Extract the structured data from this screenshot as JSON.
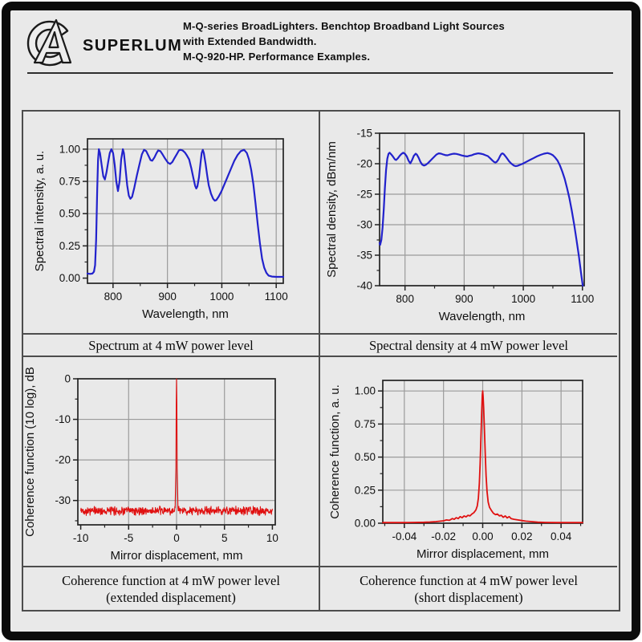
{
  "header": {
    "logo_text": "SUPERLUM",
    "title_lines": [
      "M-Q-series BroadLighters. Benchtop Broadband Light Sources",
      "with Extended Bandwidth.",
      "M-Q-920-HP. Performance Examples."
    ]
  },
  "colors": {
    "background": "#e9e9e9",
    "frame_border": "#0b0b0b",
    "table_border": "#4d4d4d",
    "grid_line": "#9b9b9b",
    "axis": "#222222",
    "blue_curve": "#2222cc",
    "red_curve": "#e01010"
  },
  "panels": [
    {
      "caption_lines": [
        "Spectrum at 4 mW power level"
      ]
    },
    {
      "caption_lines": [
        "Spectral density at 4 mW power level"
      ]
    },
    {
      "caption_lines": [
        "Coherence function at 4 mW power level",
        "(extended displacement)"
      ]
    },
    {
      "caption_lines": [
        "Coherence function at 4 mW power level",
        "(short displacement)"
      ]
    }
  ],
  "chart_data": [
    {
      "type": "line",
      "xlabel": "Wavelength, nm",
      "ylabel": "Spectral intensity, a. u.",
      "color": "#2222cc",
      "stroke_width": 2.2,
      "xlim": [
        753,
        1113
      ],
      "ylim": [
        -0.04,
        1.08
      ],
      "x_ticks": [
        {
          "v": 800,
          "l": "800"
        },
        {
          "v": 900,
          "l": "900"
        },
        {
          "v": 1000,
          "l": "1000"
        },
        {
          "v": 1100,
          "l": "1100"
        }
      ],
      "y_ticks": [
        {
          "v": 0,
          "l": "0.00"
        },
        {
          "v": 0.25,
          "l": "0.25"
        },
        {
          "v": 0.5,
          "l": "0.50"
        },
        {
          "v": 0.75,
          "l": "0.75"
        },
        {
          "v": 1.0,
          "l": "1.00"
        }
      ],
      "x_minor_step": 50,
      "y_minor_step": 0.125,
      "points": [
        [
          753,
          0.035
        ],
        [
          758,
          0.033
        ],
        [
          762,
          0.035
        ],
        [
          765,
          0.05
        ],
        [
          767,
          0.1
        ],
        [
          769,
          0.3
        ],
        [
          771,
          0.7
        ],
        [
          772.5,
          0.92
        ],
        [
          774,
          1.0
        ],
        [
          776,
          0.97
        ],
        [
          779,
          0.88
        ],
        [
          782,
          0.79
        ],
        [
          785,
          0.765
        ],
        [
          788,
          0.82
        ],
        [
          791,
          0.9
        ],
        [
          794,
          0.97
        ],
        [
          797,
          1.0
        ],
        [
          800,
          0.97
        ],
        [
          803,
          0.88
        ],
        [
          806,
          0.75
        ],
        [
          809,
          0.675
        ],
        [
          812,
          0.75
        ],
        [
          815,
          0.92
        ],
        [
          818,
          1.0
        ],
        [
          820,
          0.97
        ],
        [
          823,
          0.85
        ],
        [
          826,
          0.72
        ],
        [
          829,
          0.64
        ],
        [
          832,
          0.615
        ],
        [
          835,
          0.63
        ],
        [
          839,
          0.7
        ],
        [
          844,
          0.8
        ],
        [
          849,
          0.89
        ],
        [
          853,
          0.96
        ],
        [
          857,
          0.995
        ],
        [
          861,
          0.985
        ],
        [
          865,
          0.95
        ],
        [
          869,
          0.915
        ],
        [
          872,
          0.91
        ],
        [
          876,
          0.935
        ],
        [
          880,
          0.97
        ],
        [
          883,
          0.99
        ],
        [
          887,
          0.985
        ],
        [
          891,
          0.96
        ],
        [
          896,
          0.925
        ],
        [
          901,
          0.895
        ],
        [
          905,
          0.885
        ],
        [
          909,
          0.9
        ],
        [
          913,
          0.93
        ],
        [
          917,
          0.96
        ],
        [
          921,
          0.99
        ],
        [
          924,
          0.995
        ],
        [
          928,
          0.99
        ],
        [
          932,
          0.975
        ],
        [
          936,
          0.95
        ],
        [
          940,
          0.92
        ],
        [
          944,
          0.85
        ],
        [
          948,
          0.77
        ],
        [
          951,
          0.715
        ],
        [
          953,
          0.695
        ],
        [
          955,
          0.71
        ],
        [
          958,
          0.78
        ],
        [
          961,
          0.9
        ],
        [
          963,
          0.97
        ],
        [
          965,
          0.995
        ],
        [
          967,
          0.97
        ],
        [
          970,
          0.89
        ],
        [
          973,
          0.8
        ],
        [
          976,
          0.72
        ],
        [
          980,
          0.655
        ],
        [
          984,
          0.615
        ],
        [
          987,
          0.6
        ],
        [
          990,
          0.605
        ],
        [
          994,
          0.63
        ],
        [
          999,
          0.67
        ],
        [
          1005,
          0.73
        ],
        [
          1011,
          0.79
        ],
        [
          1017,
          0.85
        ],
        [
          1023,
          0.91
        ],
        [
          1029,
          0.955
        ],
        [
          1035,
          0.985
        ],
        [
          1041,
          0.995
        ],
        [
          1046,
          0.97
        ],
        [
          1050,
          0.92
        ],
        [
          1054,
          0.84
        ],
        [
          1058,
          0.73
        ],
        [
          1062,
          0.58
        ],
        [
          1066,
          0.42
        ],
        [
          1070,
          0.27
        ],
        [
          1074,
          0.15
        ],
        [
          1078,
          0.08
        ],
        [
          1082,
          0.04
        ],
        [
          1086,
          0.02
        ],
        [
          1092,
          0.012
        ],
        [
          1100,
          0.01
        ],
        [
          1113,
          0.01
        ]
      ]
    },
    {
      "type": "line",
      "xlabel": "Wavelength, nm",
      "ylabel": "Spectral density, dBm/nm",
      "color": "#2222cc",
      "stroke_width": 2.2,
      "xlim": [
        757,
        1103
      ],
      "ylim": [
        -40,
        -15
      ],
      "x_ticks": [
        {
          "v": 800,
          "l": "800"
        },
        {
          "v": 900,
          "l": "900"
        },
        {
          "v": 1000,
          "l": "1000"
        },
        {
          "v": 1100,
          "l": "1100"
        }
      ],
      "y_ticks": [
        {
          "v": -15,
          "l": "-15"
        },
        {
          "v": -20,
          "l": "-20"
        },
        {
          "v": -25,
          "l": "-25"
        },
        {
          "v": -30,
          "l": "-30"
        },
        {
          "v": -35,
          "l": "-35"
        },
        {
          "v": -40,
          "l": "-40"
        }
      ],
      "x_minor_step": 50,
      "y_minor_step": 2.5,
      "points": [
        [
          757,
          -33.0
        ],
        [
          758,
          -33.3
        ],
        [
          760,
          -32.5
        ],
        [
          762,
          -30.5
        ],
        [
          764,
          -27.5
        ],
        [
          766,
          -24
        ],
        [
          768,
          -21
        ],
        [
          770,
          -19.2
        ],
        [
          772,
          -18.4
        ],
        [
          774,
          -18.2
        ],
        [
          777,
          -18.5
        ],
        [
          780,
          -18.9
        ],
        [
          783,
          -19.3
        ],
        [
          785,
          -19.4
        ],
        [
          788,
          -19.1
        ],
        [
          791,
          -18.7
        ],
        [
          794,
          -18.4
        ],
        [
          797,
          -18.2
        ],
        [
          800,
          -18.4
        ],
        [
          803,
          -18.8
        ],
        [
          806,
          -19.5
        ],
        [
          809,
          -19.95
        ],
        [
          812,
          -19.4
        ],
        [
          815,
          -18.7
        ],
        [
          818,
          -18.35
        ],
        [
          820,
          -18.5
        ],
        [
          823,
          -19.0
        ],
        [
          826,
          -19.7
        ],
        [
          829,
          -20.15
        ],
        [
          832,
          -20.3
        ],
        [
          835,
          -20.2
        ],
        [
          839,
          -19.9
        ],
        [
          844,
          -19.4
        ],
        [
          849,
          -18.9
        ],
        [
          853,
          -18.5
        ],
        [
          857,
          -18.3
        ],
        [
          861,
          -18.35
        ],
        [
          865,
          -18.5
        ],
        [
          869,
          -18.6
        ],
        [
          872,
          -18.62
        ],
        [
          876,
          -18.5
        ],
        [
          880,
          -18.4
        ],
        [
          883,
          -18.35
        ],
        [
          887,
          -18.4
        ],
        [
          891,
          -18.5
        ],
        [
          896,
          -18.65
        ],
        [
          901,
          -18.75
        ],
        [
          905,
          -18.8
        ],
        [
          909,
          -18.7
        ],
        [
          913,
          -18.6
        ],
        [
          917,
          -18.45
        ],
        [
          921,
          -18.35
        ],
        [
          924,
          -18.3
        ],
        [
          928,
          -18.35
        ],
        [
          932,
          -18.45
        ],
        [
          936,
          -18.6
        ],
        [
          940,
          -18.75
        ],
        [
          944,
          -19.1
        ],
        [
          948,
          -19.5
        ],
        [
          951,
          -19.75
        ],
        [
          953,
          -19.8
        ],
        [
          955,
          -19.7
        ],
        [
          958,
          -19.3
        ],
        [
          961,
          -18.7
        ],
        [
          963,
          -18.4
        ],
        [
          965,
          -18.3
        ],
        [
          967,
          -18.45
        ],
        [
          970,
          -18.8
        ],
        [
          973,
          -19.2
        ],
        [
          976,
          -19.6
        ],
        [
          980,
          -20.0
        ],
        [
          984,
          -20.3
        ],
        [
          987,
          -20.4
        ],
        [
          990,
          -20.35
        ],
        [
          994,
          -20.2
        ],
        [
          999,
          -20.0
        ],
        [
          1005,
          -19.7
        ],
        [
          1011,
          -19.4
        ],
        [
          1017,
          -19.1
        ],
        [
          1023,
          -18.8
        ],
        [
          1029,
          -18.55
        ],
        [
          1035,
          -18.35
        ],
        [
          1041,
          -18.25
        ],
        [
          1046,
          -18.4
        ],
        [
          1050,
          -18.6
        ],
        [
          1054,
          -19.0
        ],
        [
          1058,
          -19.5
        ],
        [
          1062,
          -20.3
        ],
        [
          1066,
          -21.3
        ],
        [
          1070,
          -22.5
        ],
        [
          1074,
          -24
        ],
        [
          1078,
          -25.7
        ],
        [
          1082,
          -27.7
        ],
        [
          1086,
          -30
        ],
        [
          1090,
          -32.5
        ],
        [
          1094,
          -35.2
        ],
        [
          1098,
          -38.2
        ],
        [
          1100.5,
          -40
        ]
      ]
    },
    {
      "type": "line",
      "xlabel": "Mirror displacement, mm",
      "ylabel": "Coherence function (10 log), dB",
      "color": "#e01010",
      "stroke_width": 1.1,
      "xlim": [
        -10.3,
        10.3
      ],
      "ylim": [
        -36,
        0
      ],
      "x_ticks": [
        {
          "v": -10,
          "l": "-10"
        },
        {
          "v": -5,
          "l": "-5"
        },
        {
          "v": 0,
          "l": "0"
        },
        {
          "v": 5,
          "l": "5"
        },
        {
          "v": 10,
          "l": "10"
        }
      ],
      "y_ticks": [
        {
          "v": 0,
          "l": "0"
        },
        {
          "v": -10,
          "l": "-10"
        },
        {
          "v": -20,
          "l": "-20"
        },
        {
          "v": -30,
          "l": "-30"
        }
      ],
      "x_minor_step": 2.5,
      "y_minor_step": 5,
      "noise": {
        "x_min": -10,
        "x_max": 10,
        "n": 620,
        "baseline": -32.55,
        "amplitude": 1.25,
        "seed": 42
      },
      "peak_points": [
        [
          -0.15,
          -31.8
        ],
        [
          -0.07,
          -22
        ],
        [
          -0.03,
          -6
        ],
        [
          0,
          0
        ],
        [
          0.03,
          -6
        ],
        [
          0.07,
          -22
        ],
        [
          0.15,
          -31.8
        ]
      ]
    },
    {
      "type": "line",
      "xlabel": "Mirror displacement, mm",
      "ylabel": "Coherence function, a. u.",
      "color": "#e01010",
      "stroke_width": 1.8,
      "xlim": [
        -0.051,
        0.051
      ],
      "ylim": [
        0,
        1.08
      ],
      "x_ticks": [
        {
          "v": -0.04,
          "l": "-0.04"
        },
        {
          "v": -0.02,
          "l": "-0.02"
        },
        {
          "v": 0,
          "l": "0.00"
        },
        {
          "v": 0.02,
          "l": "0.02"
        },
        {
          "v": 0.04,
          "l": "0.04"
        }
      ],
      "y_ticks": [
        {
          "v": 0,
          "l": "0.00"
        },
        {
          "v": 0.25,
          "l": "0.25"
        },
        {
          "v": 0.5,
          "l": "0.50"
        },
        {
          "v": 0.75,
          "l": "0.75"
        },
        {
          "v": 1.0,
          "l": "1.00"
        }
      ],
      "x_minor_step": 0.01,
      "y_minor_step": 0.125,
      "points": [
        [
          -0.051,
          0.005
        ],
        [
          -0.045,
          0.005
        ],
        [
          -0.04,
          0.005
        ],
        [
          -0.035,
          0.006
        ],
        [
          -0.03,
          0.007
        ],
        [
          -0.027,
          0.009
        ],
        [
          -0.024,
          0.012
        ],
        [
          -0.022,
          0.015
        ],
        [
          -0.02,
          0.018
        ],
        [
          -0.0185,
          0.025
        ],
        [
          -0.017,
          0.022
        ],
        [
          -0.0155,
          0.035
        ],
        [
          -0.0145,
          0.03
        ],
        [
          -0.0135,
          0.042
        ],
        [
          -0.0125,
          0.035
        ],
        [
          -0.0115,
          0.05
        ],
        [
          -0.0105,
          0.042
        ],
        [
          -0.0095,
          0.055
        ],
        [
          -0.0085,
          0.048
        ],
        [
          -0.0075,
          0.06
        ],
        [
          -0.0065,
          0.055
        ],
        [
          -0.0055,
          0.07
        ],
        [
          -0.0045,
          0.08
        ],
        [
          -0.0035,
          0.1
        ],
        [
          -0.0028,
          0.13
        ],
        [
          -0.0022,
          0.19
        ],
        [
          -0.0017,
          0.3
        ],
        [
          -0.0013,
          0.45
        ],
        [
          -0.0009,
          0.65
        ],
        [
          -0.0005,
          0.85
        ],
        [
          -0.0002,
          0.97
        ],
        [
          0,
          1.0
        ],
        [
          0.0002,
          0.96
        ],
        [
          0.0005,
          0.87
        ],
        [
          0.0009,
          0.7
        ],
        [
          0.0013,
          0.52
        ],
        [
          0.0017,
          0.36
        ],
        [
          0.0022,
          0.24
        ],
        [
          0.0028,
          0.16
        ],
        [
          0.0035,
          0.12
        ],
        [
          0.0045,
          0.095
        ],
        [
          0.0055,
          0.075
        ],
        [
          0.0065,
          0.065
        ],
        [
          0.0075,
          0.07
        ],
        [
          0.0085,
          0.055
        ],
        [
          0.0095,
          0.06
        ],
        [
          0.0105,
          0.045
        ],
        [
          0.0115,
          0.055
        ],
        [
          0.0125,
          0.04
        ],
        [
          0.0135,
          0.05
        ],
        [
          0.0145,
          0.035
        ],
        [
          0.016,
          0.03
        ],
        [
          0.018,
          0.025
        ],
        [
          0.02,
          0.02
        ],
        [
          0.022,
          0.016
        ],
        [
          0.025,
          0.012
        ],
        [
          0.028,
          0.008
        ],
        [
          0.032,
          0.006
        ],
        [
          0.038,
          0.005
        ],
        [
          0.045,
          0.005
        ],
        [
          0.051,
          0.005
        ]
      ]
    }
  ]
}
